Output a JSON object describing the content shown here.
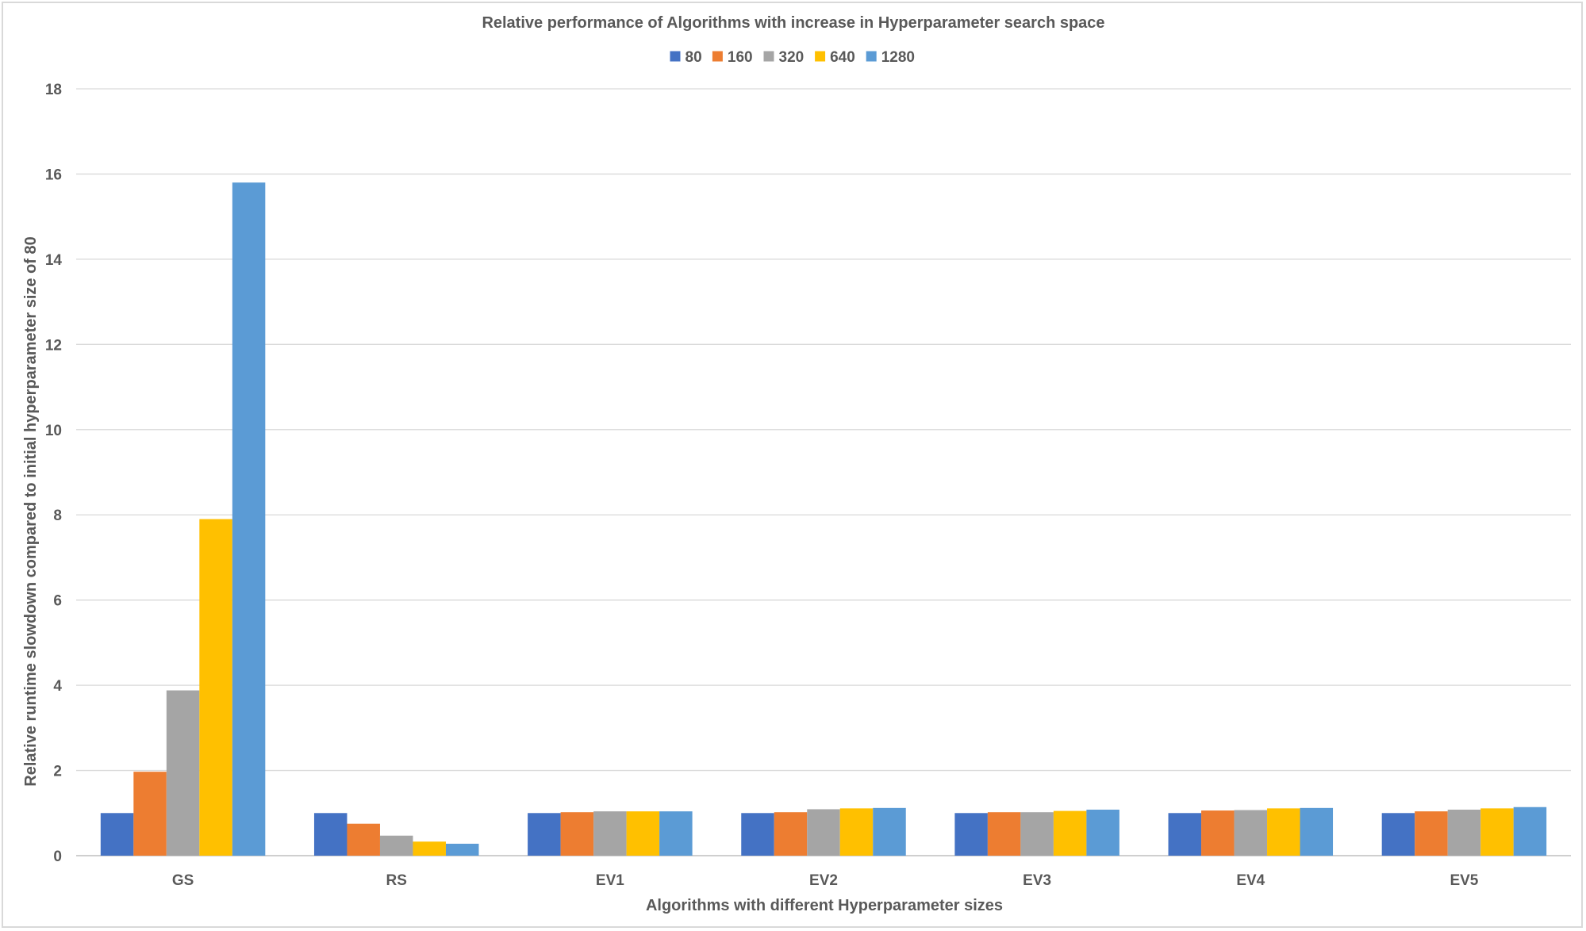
{
  "chart_data": {
    "type": "bar",
    "title": "Relative performance of Algorithms with increase in Hyperparameter search space",
    "xlabel": "Algorithms with different Hyperparameter sizes",
    "ylabel": "Relative runtime slowdown compared to initial hyperparameter size of 80",
    "ylim": [
      0,
      18
    ],
    "yticks": [
      0,
      2,
      4,
      6,
      8,
      10,
      12,
      14,
      16,
      18
    ],
    "grid": true,
    "legend_position": "top",
    "categories": [
      "GS",
      "RS",
      "EV1",
      "EV2",
      "EV3",
      "EV4",
      "EV5"
    ],
    "series": [
      {
        "name": "80",
        "color": "#4472C4",
        "values": [
          1,
          1,
          1,
          1,
          1,
          1,
          1
        ]
      },
      {
        "name": "160",
        "color": "#ED7D31",
        "values": [
          1.97,
          0.75,
          1.02,
          1.02,
          1.02,
          1.06,
          1.04
        ]
      },
      {
        "name": "320",
        "color": "#A5A5A5",
        "values": [
          3.88,
          0.47,
          1.04,
          1.09,
          1.02,
          1.07,
          1.08
        ]
      },
      {
        "name": "640",
        "color": "#FFC000",
        "values": [
          7.9,
          0.33,
          1.04,
          1.11,
          1.05,
          1.11,
          1.11
        ]
      },
      {
        "name": "1280",
        "color": "#5B9BD5",
        "values": [
          15.8,
          0.28,
          1.04,
          1.12,
          1.08,
          1.12,
          1.14
        ]
      }
    ]
  }
}
